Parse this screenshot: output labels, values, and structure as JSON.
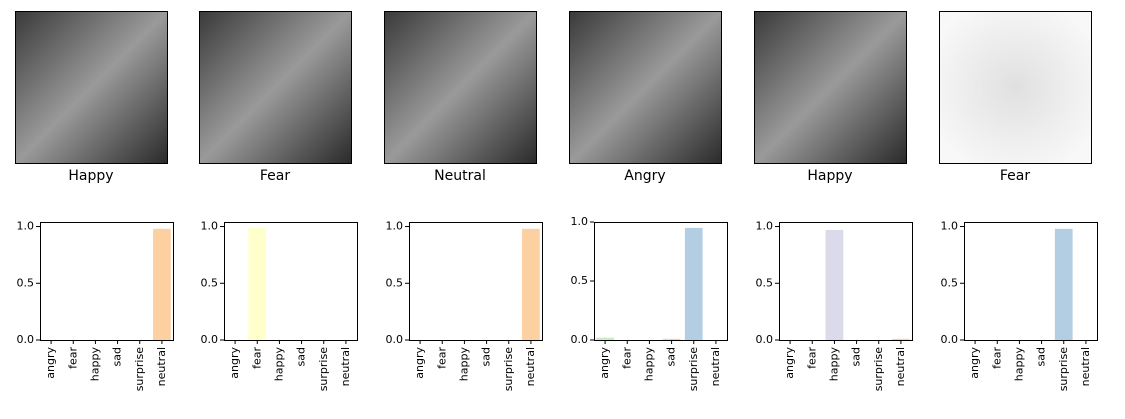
{
  "images": [
    {
      "label": "Happy",
      "color": "#4db6cf"
    },
    {
      "label": "Fear",
      "color": "#000000"
    },
    {
      "label": "Neutral",
      "color": "#000000"
    },
    {
      "label": "Angry",
      "color": "#4db6cf"
    },
    {
      "label": "Happy",
      "color": "#000000"
    },
    {
      "label": "Fear",
      "color": "#4db6cf"
    }
  ],
  "chart_data": [
    {
      "type": "bar",
      "categories": [
        "angry",
        "fear",
        "happy",
        "sad",
        "surprise",
        "neutral"
      ],
      "values": [
        0,
        0,
        0,
        0,
        0,
        0.98
      ],
      "colors": [
        "#ccebc5",
        "#ffffcc",
        "#dadaeb",
        "#fdd0a2",
        "#b3cde3",
        "#fdd0a2"
      ],
      "ylim": [
        0,
        1.04
      ],
      "yticks": [
        {
          "value": 0,
          "label": "0.0"
        },
        {
          "value": 0.5,
          "label": "0.5"
        },
        {
          "value": 1,
          "label": "1.0"
        }
      ]
    },
    {
      "type": "bar",
      "categories": [
        "angry",
        "fear",
        "happy",
        "sad",
        "surprise",
        "neutral"
      ],
      "values": [
        0,
        0.99,
        0,
        0,
        0,
        0
      ],
      "colors": [
        "#ccebc5",
        "#ffffcc",
        "#dadaeb",
        "#fdd0a2",
        "#b3cde3",
        "#fdd0a2"
      ],
      "ylim": [
        0,
        1.04
      ],
      "yticks": [
        {
          "value": 0,
          "label": "0.0"
        },
        {
          "value": 0.5,
          "label": "0.5"
        },
        {
          "value": 1,
          "label": "1.0"
        }
      ]
    },
    {
      "type": "bar",
      "categories": [
        "angry",
        "fear",
        "happy",
        "sad",
        "surprise",
        "neutral"
      ],
      "values": [
        0,
        0,
        0,
        0,
        0,
        0.98
      ],
      "colors": [
        "#ccebc5",
        "#ffffcc",
        "#dadaeb",
        "#fdd0a2",
        "#b3cde3",
        "#fdd0a2"
      ],
      "ylim": [
        0,
        1.04
      ],
      "yticks": [
        {
          "value": 0,
          "label": "0.0"
        },
        {
          "value": 0.5,
          "label": "0.5"
        },
        {
          "value": 1,
          "label": "1.0"
        }
      ]
    },
    {
      "type": "bar",
      "categories": [
        "angry",
        "fear",
        "happy",
        "sad",
        "surprise",
        "neutral"
      ],
      "values": [
        0.02,
        0,
        0,
        0.01,
        0.95,
        0
      ],
      "colors": [
        "#ccebc5",
        "#ffffcc",
        "#dadaeb",
        "#fdd0a2",
        "#b3cde3",
        "#fdd0a2"
      ],
      "ylim": [
        0,
        1.0
      ],
      "yticks": [
        {
          "value": 0,
          "label": "0.0"
        },
        {
          "value": 0.5,
          "label": "0.5"
        },
        {
          "value": 1,
          "label": "1.0"
        }
      ]
    },
    {
      "type": "bar",
      "categories": [
        "angry",
        "fear",
        "happy",
        "sad",
        "surprise",
        "neutral"
      ],
      "values": [
        0,
        0,
        0.97,
        0,
        0,
        0.01
      ],
      "colors": [
        "#ccebc5",
        "#ffffcc",
        "#dadaeb",
        "#fdd0a2",
        "#b3cde3",
        "#fdd0a2"
      ],
      "ylim": [
        0,
        1.04
      ],
      "yticks": [
        {
          "value": 0,
          "label": "0.0"
        },
        {
          "value": 0.5,
          "label": "0.5"
        },
        {
          "value": 1,
          "label": "1.0"
        }
      ]
    },
    {
      "type": "bar",
      "categories": [
        "angry",
        "fear",
        "happy",
        "sad",
        "surprise",
        "neutral"
      ],
      "values": [
        0,
        0,
        0,
        0,
        0.98,
        0
      ],
      "colors": [
        "#ccebc5",
        "#ffffcc",
        "#dadaeb",
        "#fdd0a2",
        "#b3cde3",
        "#fdd0a2"
      ],
      "ylim": [
        0,
        1.04
      ],
      "yticks": [
        {
          "value": 0,
          "label": "0.0"
        },
        {
          "value": 0.5,
          "label": "0.5"
        },
        {
          "value": 1,
          "label": "1.0"
        }
      ]
    }
  ]
}
